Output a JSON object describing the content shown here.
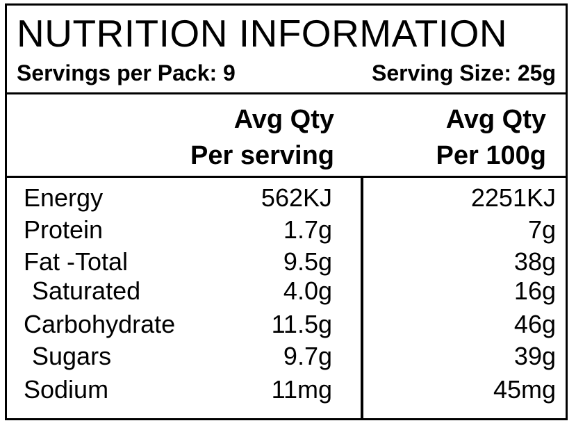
{
  "title": "NUTRITION INFORMATION",
  "servings_per_pack": "Servings per Pack: 9",
  "serving_size": "Serving Size: 25g",
  "columns": {
    "serving_line1": "Avg Qty",
    "serving_line2": "Per serving",
    "per100_line1": "Avg Qty",
    "per100_line2": "Per 100g"
  },
  "rows": [
    {
      "label": "Energy",
      "per_serving": "562KJ",
      "per_100g": "2251KJ"
    },
    {
      "label": "Protein",
      "per_serving": "1.7g",
      "per_100g": "7g"
    },
    {
      "label": "Fat -Total",
      "per_serving": "9.5g",
      "per_100g": "38g"
    },
    {
      "label": "Saturated",
      "per_serving": "4.0g",
      "per_100g": "16g"
    },
    {
      "label": "Carbohydrate",
      "per_serving": "11.5g",
      "per_100g": "46g"
    },
    {
      "label": "Sugars",
      "per_serving": "9.7g",
      "per_100g": "39g"
    },
    {
      "label": "Sodium",
      "per_serving": "11mg",
      "per_100g": "45mg"
    }
  ]
}
